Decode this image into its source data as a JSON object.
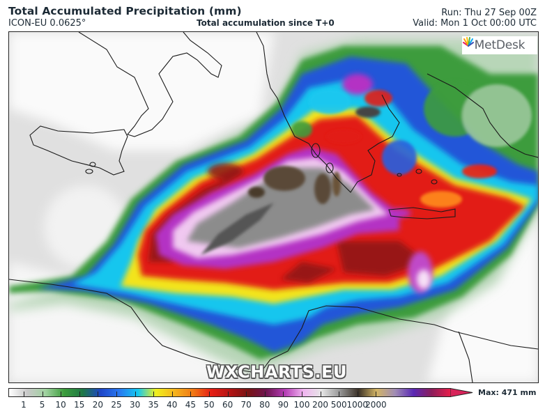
{
  "header": {
    "title": "Total Accumulated Precipitation (mm)",
    "model": "ICON-EU 0.0625°",
    "subtitle": "Total accumulation since T+0",
    "run": "Run: Thu 27 Sep 00Z",
    "valid": "Valid: Mon 1 Oct 00:00 UTC"
  },
  "map": {
    "logo": "MetDesk",
    "watermark": "WXCHARTS.EU",
    "region": "Central Mediterranean / Ionian Sea / Greece / Libya",
    "colors": {
      "land_white": "#ffffff",
      "light_grey": "#d9d9d9",
      "green": "#3a9a3c",
      "blue": "#2a5ae0",
      "cyan": "#19c8f0",
      "yellow": "#f5e61e",
      "orange": "#f08c1e",
      "red": "#dc1e1e",
      "dark_red": "#8c1414",
      "magenta": "#b432c8",
      "pink": "#f0b4f0",
      "dark_grey": "#505050",
      "brown": "#5a4632"
    }
  },
  "colorbar": {
    "ticks": [
      "1",
      "5",
      "10",
      "15",
      "20",
      "25",
      "30",
      "35",
      "40",
      "45",
      "50",
      "60",
      "70",
      "80",
      "90",
      "100",
      "200",
      "500",
      "1000",
      "2000"
    ],
    "max_label": "Max: 471 mm",
    "stops": [
      "#ffffff",
      "#c8c8c8",
      "#a0d2a0",
      "#3c9c3c",
      "#1e7846",
      "#1e46c8",
      "#2878f0",
      "#14c8f0",
      "#f0f01e",
      "#f5b41e",
      "#f07814",
      "#e61e14",
      "#b41414",
      "#781414",
      "#6e1450",
      "#b43cb4",
      "#f0b4f0",
      "#e6e6e6",
      "#969696",
      "#3c3228",
      "#d2b464",
      "#a08cb4",
      "#5a28b4",
      "#8c1e5a",
      "#e61e4b"
    ]
  },
  "chart_data": {
    "type": "heatmap",
    "title": "Total Accumulated Precipitation (mm)",
    "subtitle": "Total accumulation since T+0",
    "model": "ICON-EU 0.0625°",
    "run": "Thu 27 Sep 00Z",
    "valid": "Mon 1 Oct 00:00 UTC",
    "colorbar_levels_mm": [
      1,
      5,
      10,
      15,
      20,
      25,
      30,
      35,
      40,
      45,
      50,
      60,
      70,
      80,
      90,
      100,
      200,
      500,
      1000,
      2000
    ],
    "max_value_mm": 471,
    "legend_position": "bottom",
    "annotations": [
      "MetDesk",
      "WXCHARTS.EU"
    ],
    "features": [
      {
        "area": "Central Ionian Sea (between Sicily and Greece)",
        "range_mm": "200-471",
        "color": "dark grey/brown"
      },
      {
        "area": "Ring around Ionian core",
        "range_mm": "70-100",
        "color": "magenta/pink"
      },
      {
        "area": "Outer band arcing from Gulf of Sirte to Crete",
        "range_mm": "35-70",
        "color": "red/orange"
      },
      {
        "area": "Western Greece / Peloponnese / Aegean",
        "range_mm": "20-100",
        "color": "blue to red, local magenta"
      },
      {
        "area": "Libya coast / Gulf of Sirte",
        "range_mm": "10-35",
        "color": "blue/cyan/yellow"
      },
      {
        "area": "Sicily, southern Italy, Tunisia, interior Libya/Egypt",
        "range_mm": "0-5",
        "color": "white/light grey"
      },
      {
        "area": "Turkey west coast",
        "range_mm": "5-15",
        "color": "green"
      }
    ]
  }
}
